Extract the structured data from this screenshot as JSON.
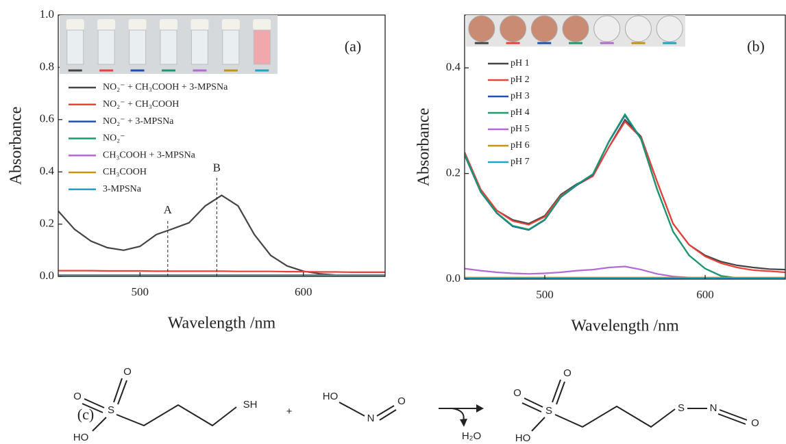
{
  "chart_data": [
    {
      "type": "line",
      "panel": "(a)",
      "ylabel": "Absorbance",
      "xlabel": "Wavelength /nm",
      "xlim": [
        450,
        650
      ],
      "xticks": [
        500,
        600
      ],
      "ylim": [
        0,
        1
      ],
      "yticks": [
        {
          "value": 0,
          "label": "0.0"
        },
        0.2,
        0.4,
        0.6,
        0.8,
        {
          "value": 1,
          "label": "1.0"
        }
      ],
      "x": [
        450,
        460,
        470,
        480,
        490,
        500,
        510,
        520,
        530,
        540,
        550,
        560,
        570,
        580,
        590,
        600,
        610,
        620,
        630,
        640,
        650
      ],
      "series": [
        {
          "name": "NO₂⁻ + CH₃COOH + 3-MPSNa",
          "color": "#444444",
          "values": [
            0.25,
            0.18,
            0.135,
            0.11,
            0.1,
            0.115,
            0.16,
            0.182,
            0.205,
            0.27,
            0.31,
            0.27,
            0.16,
            0.08,
            0.04,
            0.02,
            0.01,
            0.005,
            0.003,
            0.002,
            0.002
          ]
        },
        {
          "name": "NO₂⁻ + CH₃COOH",
          "color": "#e8403a",
          "values": [
            0.022,
            0.022,
            0.022,
            0.021,
            0.021,
            0.021,
            0.02,
            0.02,
            0.02,
            0.02,
            0.02,
            0.019,
            0.019,
            0.019,
            0.018,
            0.018,
            0.017,
            0.017,
            0.016,
            0.016,
            0.016
          ]
        },
        {
          "name": "NO₂⁻ + 3-MPSNa",
          "color": "#1f4fb4",
          "values": [
            0.005,
            0.005,
            0.005,
            0.005,
            0.005,
            0.005,
            0.005,
            0.005,
            0.005,
            0.005,
            0.005,
            0.005,
            0.005,
            0.005,
            0.005,
            0.005,
            0.005,
            0.005,
            0.005,
            0.005,
            0.005
          ]
        },
        {
          "name": "NO₂⁻",
          "color": "#1a9a6b",
          "values": [
            0.003,
            0.003,
            0.003,
            0.003,
            0.003,
            0.003,
            0.003,
            0.003,
            0.003,
            0.003,
            0.003,
            0.003,
            0.003,
            0.003,
            0.003,
            0.003,
            0.003,
            0.003,
            0.003,
            0.003,
            0.003
          ]
        },
        {
          "name": "CH₃COOH + 3-MPSNa",
          "color": "#b36ad6",
          "values": [
            0.004,
            0.004,
            0.004,
            0.004,
            0.004,
            0.004,
            0.004,
            0.004,
            0.004,
            0.004,
            0.004,
            0.004,
            0.004,
            0.004,
            0.004,
            0.004,
            0.004,
            0.004,
            0.004,
            0.004,
            0.004
          ]
        },
        {
          "name": "CH₃COOH",
          "color": "#c8920f",
          "values": [
            0.002,
            0.002,
            0.002,
            0.002,
            0.002,
            0.002,
            0.002,
            0.002,
            0.002,
            0.002,
            0.002,
            0.002,
            0.002,
            0.002,
            0.002,
            0.002,
            0.002,
            0.002,
            0.002,
            0.002,
            0.002
          ]
        },
        {
          "name": "3-MPSNa",
          "color": "#1ca4c9",
          "values": [
            0.001,
            0.001,
            0.001,
            0.001,
            0.001,
            0.001,
            0.001,
            0.001,
            0.001,
            0.001,
            0.001,
            0.001,
            0.001,
            0.001,
            0.001,
            0.001,
            0.001,
            0.001,
            0.001,
            0.001,
            0.001
          ]
        }
      ],
      "annotations": [
        {
          "text": "A",
          "x": 517,
          "y": 0.22
        },
        {
          "text": "B",
          "x": 547,
          "y": 0.38
        }
      ]
    },
    {
      "type": "line",
      "panel": "(b)",
      "ylabel": "Absorbance",
      "xlabel": "Wavelength /nm",
      "xlim": [
        450,
        650
      ],
      "xticks": [
        500,
        600
      ],
      "ylim": [
        0,
        0.5
      ],
      "yticks": [
        {
          "value": 0,
          "label": "0.0"
        },
        0.2,
        0.4
      ],
      "x": [
        450,
        460,
        470,
        480,
        490,
        500,
        510,
        520,
        530,
        540,
        550,
        560,
        570,
        580,
        590,
        600,
        610,
        620,
        630,
        640,
        650
      ],
      "series": [
        {
          "name": "pH 1",
          "color": "#444444",
          "values": [
            0.24,
            0.17,
            0.13,
            0.112,
            0.105,
            0.12,
            0.16,
            0.18,
            0.195,
            0.25,
            0.302,
            0.27,
            0.185,
            0.105,
            0.065,
            0.045,
            0.033,
            0.026,
            0.022,
            0.019,
            0.018
          ]
        },
        {
          "name": "pH 2",
          "color": "#e8403a",
          "values": [
            0.24,
            0.17,
            0.13,
            0.11,
            0.103,
            0.118,
            0.158,
            0.178,
            0.195,
            0.25,
            0.298,
            0.268,
            0.185,
            0.105,
            0.065,
            0.043,
            0.03,
            0.022,
            0.017,
            0.015,
            0.013
          ]
        },
        {
          "name": "pH 3",
          "color": "#1f4fb4",
          "values": [
            0.235,
            0.165,
            0.125,
            0.1,
            0.093,
            0.112,
            0.155,
            0.178,
            0.198,
            0.26,
            0.31,
            0.265,
            0.17,
            0.09,
            0.045,
            0.02,
            0.006,
            0.002,
            0.001,
            0.001,
            0.001
          ]
        },
        {
          "name": "pH 4",
          "color": "#1a9a6b",
          "values": [
            0.237,
            0.166,
            0.126,
            0.101,
            0.094,
            0.113,
            0.156,
            0.179,
            0.199,
            0.261,
            0.312,
            0.266,
            0.171,
            0.09,
            0.045,
            0.02,
            0.006,
            0.002,
            0.001,
            0.001,
            0.001
          ]
        },
        {
          "name": "pH 5",
          "color": "#b36ad6",
          "values": [
            0.02,
            0.016,
            0.013,
            0.011,
            0.01,
            0.011,
            0.013,
            0.016,
            0.018,
            0.022,
            0.024,
            0.018,
            0.01,
            0.005,
            0.003,
            0.002,
            0.002,
            0.001,
            0.001,
            0.001,
            0.001
          ]
        },
        {
          "name": "pH 6",
          "color": "#c8920f",
          "values": [
            0.003,
            0.003,
            0.003,
            0.003,
            0.003,
            0.003,
            0.003,
            0.003,
            0.003,
            0.003,
            0.003,
            0.003,
            0.003,
            0.003,
            0.003,
            0.003,
            0.003,
            0.003,
            0.003,
            0.003,
            0.003
          ]
        },
        {
          "name": "pH 7",
          "color": "#1ca4c9",
          "values": [
            0.002,
            0.002,
            0.002,
            0.002,
            0.002,
            0.002,
            0.002,
            0.002,
            0.002,
            0.002,
            0.002,
            0.002,
            0.002,
            0.002,
            0.002,
            0.002,
            0.002,
            0.002,
            0.002,
            0.002,
            0.002
          ]
        }
      ]
    }
  ],
  "scheme": {
    "label": "(c)",
    "texts": [
      "O",
      "O",
      "S",
      "HO",
      "SH",
      "+",
      "HO",
      "N",
      "O",
      "H₂O",
      "O",
      "O",
      "S",
      "HO",
      "S",
      "N",
      "O"
    ]
  }
}
